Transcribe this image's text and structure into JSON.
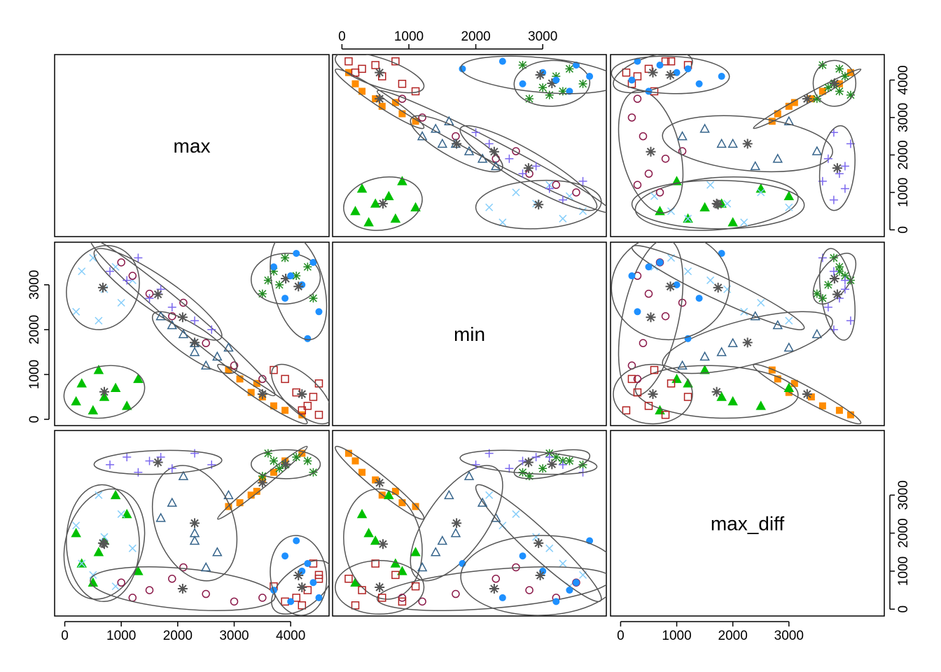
{
  "chart_data": {
    "type": "scatter_matrix",
    "variables": [
      "max",
      "min",
      "max_diff"
    ],
    "lims": [
      [
        -180,
        4680
      ],
      [
        -140,
        3950
      ],
      [
        -180,
        4700
      ]
    ],
    "ticks": [
      [
        0,
        1000,
        2000,
        3000,
        4000
      ],
      [
        0,
        1000,
        2000,
        3000
      ],
      [
        0,
        1000,
        2000,
        3000
      ]
    ],
    "clusters": [
      {
        "color": "#ff8c00",
        "marker": "square-filled",
        "points": [
          [
            3300,
            600,
            3000
          ],
          [
            3700,
            300,
            3600
          ],
          [
            3900,
            200,
            3900
          ],
          [
            3100,
            900,
            2800
          ],
          [
            3500,
            500,
            3400
          ],
          [
            4200,
            100,
            4100
          ],
          [
            3400,
            800,
            3100
          ],
          [
            2900,
            1100,
            2700
          ]
        ]
      },
      {
        "color": "#228b22",
        "marker": "asterisk",
        "points": [
          [
            3800,
            3000,
            3700
          ],
          [
            4100,
            3200,
            4000
          ],
          [
            3500,
            2800,
            3500
          ],
          [
            4300,
            3400,
            3900
          ],
          [
            3900,
            3600,
            3800
          ],
          [
            3600,
            3100,
            4100
          ],
          [
            4400,
            2700,
            3600
          ],
          [
            3700,
            3300,
            3900
          ]
        ]
      },
      {
        "color": "#00c000",
        "marker": "triangle-filled",
        "points": [
          [
            700,
            500,
            1800
          ],
          [
            300,
            800,
            1200
          ],
          [
            1100,
            300,
            2500
          ],
          [
            500,
            200,
            700
          ],
          [
            900,
            700,
            3000
          ],
          [
            200,
            400,
            2000
          ],
          [
            1300,
            900,
            1000
          ],
          [
            600,
            1100,
            1500
          ]
        ]
      },
      {
        "color": "#87cefa",
        "marker": "cross",
        "points": [
          [
            700,
            2900,
            1900
          ],
          [
            300,
            3300,
            1200
          ],
          [
            1000,
            2600,
            2500
          ],
          [
            500,
            3600,
            900
          ],
          [
            1200,
            3100,
            1600
          ],
          [
            200,
            2400,
            2200
          ],
          [
            900,
            3400,
            600
          ],
          [
            600,
            2200,
            3000
          ]
        ]
      },
      {
        "color": "#8b1a4a",
        "marker": "circle",
        "points": [
          [
            1500,
            2800,
            500
          ],
          [
            1200,
            3200,
            300
          ],
          [
            1900,
            2300,
            800
          ],
          [
            2500,
            1700,
            400
          ],
          [
            3000,
            1200,
            200
          ],
          [
            1000,
            3500,
            700
          ],
          [
            2100,
            2600,
            1100
          ],
          [
            3500,
            900,
            300
          ]
        ]
      },
      {
        "color": "#36648b",
        "marker": "triangle",
        "points": [
          [
            2300,
            1700,
            2000
          ],
          [
            1900,
            2100,
            2800
          ],
          [
            2700,
            1400,
            1500
          ],
          [
            2100,
            1900,
            3500
          ],
          [
            2500,
            1200,
            1100
          ],
          [
            1700,
            2300,
            2400
          ],
          [
            2900,
            1600,
            3000
          ],
          [
            2300,
            1500,
            1800
          ]
        ]
      },
      {
        "color": "#b22222",
        "marker": "square",
        "points": [
          [
            4300,
            300,
            500
          ],
          [
            4100,
            600,
            300
          ],
          [
            4500,
            100,
            800
          ],
          [
            3900,
            900,
            200
          ],
          [
            4400,
            500,
            1200
          ],
          [
            4200,
            200,
            100
          ],
          [
            3700,
            1100,
            600
          ],
          [
            4500,
            800,
            900
          ]
        ]
      },
      {
        "color": "#1e90ff",
        "marker": "dot",
        "points": [
          [
            4200,
            3000,
            1000
          ],
          [
            4400,
            3500,
            700
          ],
          [
            3900,
            2700,
            1400
          ],
          [
            4500,
            2400,
            300
          ],
          [
            4100,
            3700,
            1800
          ],
          [
            3700,
            3400,
            500
          ],
          [
            4300,
            1800,
            1200
          ],
          [
            4000,
            3200,
            200
          ]
        ]
      },
      {
        "color": "#7b68ee",
        "marker": "plus",
        "points": [
          [
            1500,
            2700,
            3900
          ],
          [
            1100,
            3100,
            4000
          ],
          [
            1900,
            2500,
            3700
          ],
          [
            800,
            3300,
            3800
          ],
          [
            2300,
            2200,
            4100
          ],
          [
            1300,
            3600,
            3600
          ],
          [
            1700,
            2900,
            4000
          ],
          [
            2600,
            2000,
            3800
          ]
        ]
      }
    ]
  }
}
